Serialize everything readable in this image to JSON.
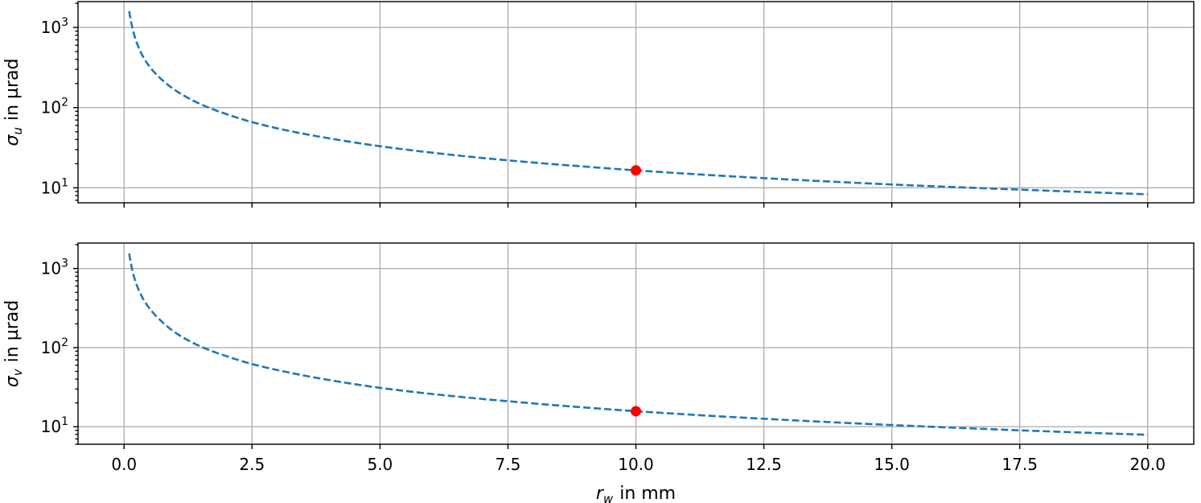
{
  "chart_data": [
    {
      "type": "line",
      "title": "",
      "ylabel_symbol": "σ",
      "ylabel_sub": "u",
      "ylabel_unit": "in µrad",
      "xlabel": "",
      "yscale": "log",
      "ylim": [
        6.5,
        2100
      ],
      "xlim": [
        -0.9,
        20.9
      ],
      "grid": true,
      "yticks": [
        {
          "value": 10,
          "base": "10",
          "exp": "1"
        },
        {
          "value": 100,
          "base": "10",
          "exp": "2"
        },
        {
          "value": 1000,
          "base": "10",
          "exp": "3"
        }
      ],
      "xticks": [
        0,
        2.5,
        5,
        7.5,
        10,
        12.5,
        15,
        17.5,
        20
      ],
      "xtick_labels_visible": false,
      "line_color": "#1f77b4",
      "line_style": "dashed",
      "series": [
        {
          "x": [
            0.1,
            0.2,
            0.4,
            0.7,
            1.0,
            1.5,
            2.0,
            2.5,
            3.0,
            4.0,
            5.0,
            6.0,
            7.5,
            9.0,
            10.0,
            12.5,
            15.0,
            17.5,
            20.0
          ],
          "y": [
            1600,
            800,
            400,
            235,
            165,
            110,
            83,
            66,
            55,
            41.5,
            33,
            27.5,
            22,
            18.4,
            16.5,
            13.2,
            11,
            9.5,
            8.3
          ]
        }
      ],
      "markers": [
        {
          "x": 10.0,
          "y": 16.5,
          "color": "#ff0000"
        }
      ]
    },
    {
      "type": "line",
      "title": "",
      "ylabel_symbol": "σ",
      "ylabel_sub": "v",
      "ylabel_unit": "in µrad",
      "xlabel_symbol": "r",
      "xlabel_sub": "w",
      "xlabel_unit": "in mm",
      "yscale": "log",
      "ylim": [
        6.0,
        2100
      ],
      "xlim": [
        -0.9,
        20.9
      ],
      "grid": true,
      "yticks": [
        {
          "value": 10,
          "base": "10",
          "exp": "1"
        },
        {
          "value": 100,
          "base": "10",
          "exp": "2"
        },
        {
          "value": 1000,
          "base": "10",
          "exp": "3"
        }
      ],
      "xticks": [
        0,
        2.5,
        5,
        7.5,
        10,
        12.5,
        15,
        17.5,
        20
      ],
      "xtick_labels": [
        "0.0",
        "2.5",
        "5.0",
        "7.5",
        "10.0",
        "12.5",
        "15.0",
        "17.5",
        "20.0"
      ],
      "xtick_labels_visible": true,
      "line_color": "#1f77b4",
      "line_style": "dashed",
      "series": [
        {
          "x": [
            0.1,
            0.2,
            0.4,
            0.7,
            1.0,
            1.5,
            2.0,
            2.5,
            3.0,
            4.0,
            5.0,
            6.0,
            7.5,
            9.0,
            10.0,
            12.5,
            15.0,
            17.5,
            20.0
          ],
          "y": [
            1550,
            760,
            385,
            225,
            155,
            103,
            78,
            62,
            52,
            39,
            31,
            26,
            21,
            17.5,
            15.7,
            12.6,
            10.5,
            9.0,
            7.9
          ]
        }
      ],
      "markers": [
        {
          "x": 10.0,
          "y": 15.7,
          "color": "#ff0000"
        }
      ]
    }
  ]
}
